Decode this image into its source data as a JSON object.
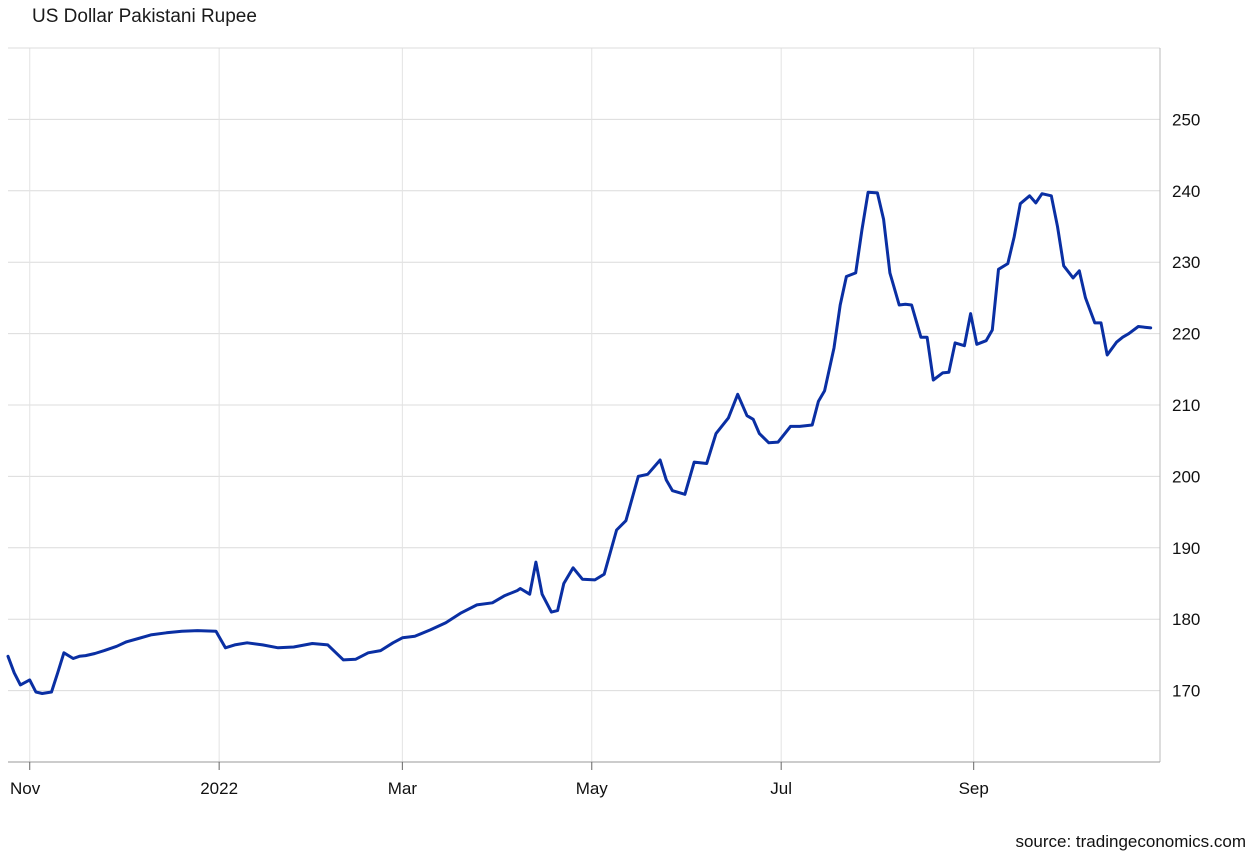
{
  "chart_data": {
    "type": "line",
    "title": "US Dollar Pakistani Rupee",
    "source": "source: tradingeconomics.com",
    "xlabel": "",
    "ylabel": "",
    "ylim": [
      160,
      260
    ],
    "yticks": [
      170,
      180,
      190,
      200,
      210,
      220,
      230,
      240,
      250
    ],
    "x_ticks": [
      "Nov",
      "2022",
      "Mar",
      "May",
      "Jul",
      "Sep"
    ],
    "x_tick_dates": [
      "2021-11-01",
      "2022-01-01",
      "2022-03-01",
      "2022-05-01",
      "2022-07-01",
      "2022-09-01"
    ],
    "xlim": [
      "2021-10-25",
      "2022-10-31"
    ],
    "grid": true,
    "line_color": "#0a2fa3",
    "series": [
      {
        "x": [
          "2021-10-25",
          "2021-10-27",
          "2021-10-29",
          "2021-11-01",
          "2021-11-03",
          "2021-11-05",
          "2021-11-08",
          "2021-11-10",
          "2021-11-12",
          "2021-11-15",
          "2021-11-17",
          "2021-11-19",
          "2021-11-22",
          "2021-11-25",
          "2021-11-29",
          "2021-12-02",
          "2021-12-06",
          "2021-12-10",
          "2021-12-15",
          "2021-12-20",
          "2021-12-25",
          "2021-12-31",
          "2022-01-03",
          "2022-01-06",
          "2022-01-10",
          "2022-01-15",
          "2022-01-20",
          "2022-01-25",
          "2022-01-31",
          "2022-02-05",
          "2022-02-10",
          "2022-02-14",
          "2022-02-18",
          "2022-02-22",
          "2022-02-26",
          "2022-03-01",
          "2022-03-05",
          "2022-03-10",
          "2022-03-15",
          "2022-03-20",
          "2022-03-25",
          "2022-03-30",
          "2022-04-03",
          "2022-04-07",
          "2022-04-08",
          "2022-04-11",
          "2022-04-13",
          "2022-04-15",
          "2022-04-18",
          "2022-04-20",
          "2022-04-22",
          "2022-04-25",
          "2022-04-28",
          "2022-05-02",
          "2022-05-05",
          "2022-05-09",
          "2022-05-12",
          "2022-05-16",
          "2022-05-19",
          "2022-05-23",
          "2022-05-25",
          "2022-05-27",
          "2022-05-31",
          "2022-06-03",
          "2022-06-07",
          "2022-06-10",
          "2022-06-14",
          "2022-06-17",
          "2022-06-20",
          "2022-06-22",
          "2022-06-24",
          "2022-06-27",
          "2022-06-30",
          "2022-07-04",
          "2022-07-07",
          "2022-07-11",
          "2022-07-13",
          "2022-07-15",
          "2022-07-18",
          "2022-07-20",
          "2022-07-22",
          "2022-07-25",
          "2022-07-27",
          "2022-07-29",
          "2022-08-01",
          "2022-08-03",
          "2022-08-05",
          "2022-08-08",
          "2022-08-10",
          "2022-08-12",
          "2022-08-15",
          "2022-08-17",
          "2022-08-19",
          "2022-08-22",
          "2022-08-24",
          "2022-08-26",
          "2022-08-29",
          "2022-08-31",
          "2022-09-02",
          "2022-09-05",
          "2022-09-07",
          "2022-09-09",
          "2022-09-12",
          "2022-09-14",
          "2022-09-16",
          "2022-09-19",
          "2022-09-21",
          "2022-09-23",
          "2022-09-26",
          "2022-09-28",
          "2022-09-30",
          "2022-10-03",
          "2022-10-05",
          "2022-10-07",
          "2022-10-10",
          "2022-10-12",
          "2022-10-14",
          "2022-10-17",
          "2022-10-19",
          "2022-10-21",
          "2022-10-24",
          "2022-10-26",
          "2022-10-28"
        ],
        "y": [
          174.8,
          172.5,
          170.8,
          171.5,
          169.8,
          169.6,
          169.8,
          172.5,
          175.3,
          174.5,
          174.8,
          174.9,
          175.2,
          175.6,
          176.2,
          176.8,
          177.3,
          177.8,
          178.1,
          178.3,
          178.4,
          178.3,
          176.0,
          176.4,
          176.7,
          176.4,
          176.0,
          176.1,
          176.6,
          176.4,
          174.3,
          174.4,
          175.3,
          175.6,
          176.7,
          177.4,
          177.6,
          178.5,
          179.5,
          180.9,
          182.0,
          182.3,
          183.3,
          184.0,
          184.3,
          183.5,
          188.0,
          183.5,
          181.0,
          181.2,
          185.0,
          187.2,
          185.6,
          185.5,
          186.3,
          192.5,
          193.8,
          200.0,
          200.3,
          202.3,
          199.5,
          198.0,
          197.5,
          202.0,
          201.8,
          206.0,
          208.2,
          211.5,
          208.5,
          208.0,
          206.0,
          204.7,
          204.8,
          207.0,
          207.0,
          207.2,
          210.5,
          212.0,
          218.0,
          224.0,
          228.0,
          228.5,
          234.5,
          239.8,
          239.7,
          236.0,
          228.5,
          224.0,
          224.1,
          224.0,
          219.5,
          219.5,
          213.5,
          214.5,
          214.6,
          218.7,
          218.3,
          222.8,
          218.5,
          219.0,
          220.5,
          229.0,
          229.8,
          233.5,
          238.2,
          239.3,
          238.3,
          239.6,
          239.3,
          235.0,
          229.5,
          227.8,
          228.8,
          225.0,
          221.5,
          221.5,
          217.0,
          218.8,
          219.5,
          220.0,
          221.0,
          220.9,
          220.8
        ]
      }
    ]
  }
}
